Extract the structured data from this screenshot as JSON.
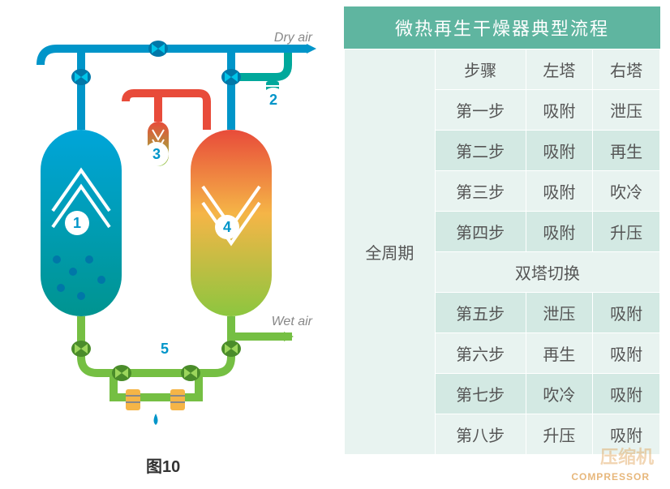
{
  "diagram": {
    "caption": "图10",
    "dry_air_label": "Dry air",
    "wet_air_label": "Wet air",
    "markers": {
      "1": "1",
      "2": "2",
      "3": "3",
      "4": "4",
      "5": "5"
    },
    "colors": {
      "tank_left_top": "#00a5d9",
      "tank_left_bottom": "#009490",
      "tank_right_top": "#e84b3a",
      "tank_right_mid": "#f5b547",
      "tank_right_bottom": "#8cc63f",
      "pipe_blue": "#0095c9",
      "pipe_teal": "#00a89b",
      "pipe_green": "#75bf43",
      "pipe_red": "#e84b3a"
    }
  },
  "table": {
    "title": "微热再生干燥器典型流程",
    "header": {
      "step": "步骤",
      "left": "左塔",
      "right": "右塔"
    },
    "cycle_label": "全周期",
    "switch_label": "双塔切换",
    "rows_top": [
      {
        "step": "第一步",
        "left": "吸附",
        "right": "泄压"
      },
      {
        "step": "第二步",
        "left": "吸附",
        "right": "再生"
      },
      {
        "step": "第三步",
        "left": "吸附",
        "right": "吹冷"
      },
      {
        "step": "第四步",
        "left": "吸附",
        "right": "升压"
      }
    ],
    "rows_bottom": [
      {
        "step": "第五步",
        "left": "泄压",
        "right": "吸附"
      },
      {
        "step": "第六步",
        "left": "再生",
        "right": "吸附"
      },
      {
        "step": "第七步",
        "left": "吹冷",
        "right": "吸附"
      },
      {
        "step": "第八步",
        "left": "升压",
        "right": "吸附"
      }
    ],
    "colors": {
      "title_bg": "#5fb5a0",
      "row_even": "#e8f3f0",
      "row_odd": "#d3e9e3",
      "text": "#555555"
    }
  },
  "watermark": {
    "en": "COMPRESSOR",
    "cn": "压缩机"
  }
}
